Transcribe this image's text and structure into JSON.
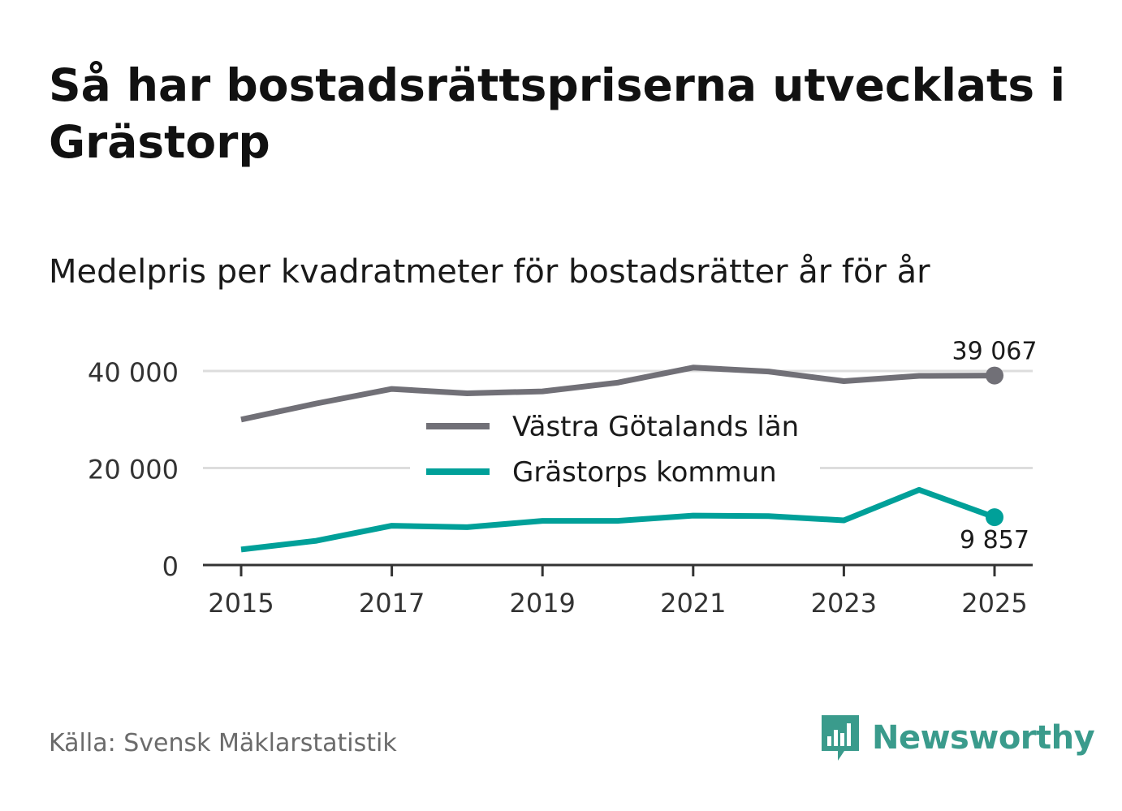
{
  "title": "Så har bostadsrättspriserna utvecklats i Grästorp",
  "subtitle": "Medelpris per kvadratmeter för bostadsrätter år för år",
  "source": "Källa: Svensk Mäklarstatistik",
  "brand": {
    "name": "Newsworthy",
    "color": "#3a9b8c"
  },
  "chart_data": {
    "type": "line",
    "x": [
      2015,
      2016,
      2017,
      2018,
      2019,
      2020,
      2021,
      2022,
      2023,
      2024,
      2025
    ],
    "series": [
      {
        "name": "Västra Götalands län",
        "color": "#717077",
        "values": [
          30000,
          33300,
          36300,
          35400,
          35800,
          37600,
          40700,
          39900,
          37900,
          39000,
          39067
        ],
        "end_label": "39 067"
      },
      {
        "name": "Grästorps kommun",
        "color": "#00a099",
        "values": [
          3200,
          5000,
          8100,
          7800,
          9100,
          9100,
          10200,
          10100,
          9200,
          15500,
          9857
        ],
        "end_label": "9 857"
      }
    ],
    "ylim": [
      0,
      40000
    ],
    "yticks": [
      0,
      20000,
      40000
    ],
    "ytick_labels": [
      "0",
      "20 000",
      "40 000"
    ],
    "xticks": [
      2015,
      2017,
      2019,
      2021,
      2023,
      2025
    ],
    "xtick_labels": [
      "2015",
      "2017",
      "2019",
      "2021",
      "2023",
      "2025"
    ],
    "xlabel": "",
    "ylabel": "",
    "grid": true,
    "legend_position": "center"
  }
}
